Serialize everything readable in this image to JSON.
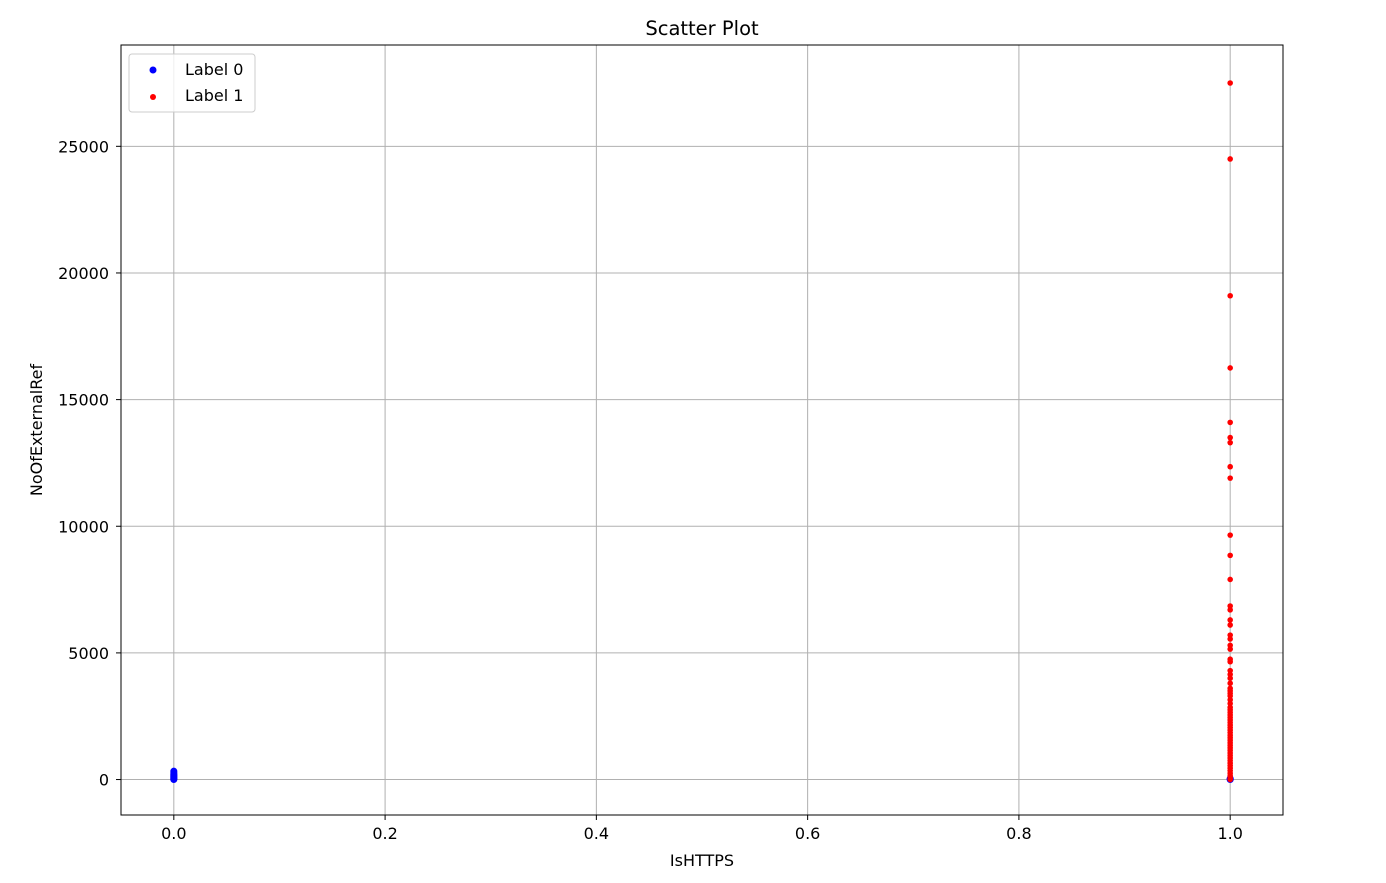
{
  "chart_data": {
    "type": "scatter",
    "title": "Scatter Plot",
    "xlabel": "IsHTTPS",
    "ylabel": "NoOfExternalRef",
    "xlim": [
      -0.05,
      1.05
    ],
    "ylim": [
      -1400,
      29000
    ],
    "xticks": [
      0.0,
      0.2,
      0.4,
      0.6,
      0.8,
      1.0
    ],
    "xtick_labels": [
      "0.0",
      "0.2",
      "0.4",
      "0.6",
      "0.8",
      "1.0"
    ],
    "yticks": [
      0,
      5000,
      10000,
      15000,
      20000,
      25000
    ],
    "ytick_labels": [
      "0",
      "5000",
      "10000",
      "15000",
      "20000",
      "25000"
    ],
    "grid": true,
    "legend": "top-left",
    "series": [
      {
        "name": "Label 0",
        "color": "#0000ff",
        "points": [
          [
            0.0,
            0
          ],
          [
            0.0,
            20
          ],
          [
            0.0,
            50
          ],
          [
            0.0,
            80
          ],
          [
            0.0,
            110
          ],
          [
            0.0,
            140
          ],
          [
            0.0,
            170
          ],
          [
            0.0,
            200
          ],
          [
            0.0,
            240
          ],
          [
            0.0,
            280
          ],
          [
            0.0,
            330
          ],
          [
            1.0,
            0
          ],
          [
            1.0,
            20
          ],
          [
            1.0,
            40
          ]
        ]
      },
      {
        "name": "Label 1",
        "color": "#ff0000",
        "points": [
          [
            1.0,
            27500
          ],
          [
            1.0,
            24500
          ],
          [
            1.0,
            19100
          ],
          [
            1.0,
            16250
          ],
          [
            1.0,
            14100
          ],
          [
            1.0,
            13500
          ],
          [
            1.0,
            13300
          ],
          [
            1.0,
            12350
          ],
          [
            1.0,
            11900
          ],
          [
            1.0,
            9650
          ],
          [
            1.0,
            8850
          ],
          [
            1.0,
            7900
          ],
          [
            1.0,
            6850
          ],
          [
            1.0,
            6700
          ],
          [
            1.0,
            6300
          ],
          [
            1.0,
            6100
          ],
          [
            1.0,
            5700
          ],
          [
            1.0,
            5550
          ],
          [
            1.0,
            5300
          ],
          [
            1.0,
            5150
          ],
          [
            1.0,
            4750
          ],
          [
            1.0,
            4650
          ],
          [
            1.0,
            4300
          ],
          [
            1.0,
            4150
          ],
          [
            1.0,
            4000
          ],
          [
            1.0,
            3800
          ],
          [
            1.0,
            3600
          ],
          [
            1.0,
            3500
          ],
          [
            1.0,
            3400
          ],
          [
            1.0,
            3300
          ],
          [
            1.0,
            3150
          ],
          [
            1.0,
            3000
          ],
          [
            1.0,
            2850
          ],
          [
            1.0,
            2750
          ],
          [
            1.0,
            2650
          ],
          [
            1.0,
            2550
          ],
          [
            1.0,
            2450
          ],
          [
            1.0,
            2350
          ],
          [
            1.0,
            2250
          ],
          [
            1.0,
            2150
          ],
          [
            1.0,
            2050
          ],
          [
            1.0,
            1950
          ],
          [
            1.0,
            1850
          ],
          [
            1.0,
            1750
          ],
          [
            1.0,
            1650
          ],
          [
            1.0,
            1550
          ],
          [
            1.0,
            1450
          ],
          [
            1.0,
            1350
          ],
          [
            1.0,
            1250
          ],
          [
            1.0,
            1150
          ],
          [
            1.0,
            1050
          ],
          [
            1.0,
            950
          ],
          [
            1.0,
            850
          ],
          [
            1.0,
            750
          ],
          [
            1.0,
            650
          ],
          [
            1.0,
            550
          ],
          [
            1.0,
            450
          ],
          [
            1.0,
            350
          ],
          [
            1.0,
            250
          ],
          [
            1.0,
            150
          ],
          [
            1.0,
            60
          ],
          [
            1.0,
            0
          ]
        ]
      }
    ]
  }
}
